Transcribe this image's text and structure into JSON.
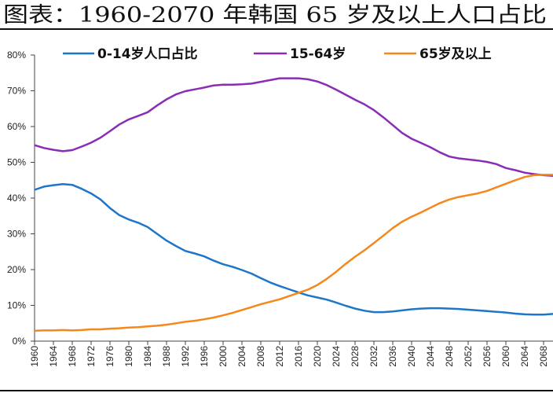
{
  "chart_data": {
    "type": "line",
    "title": "图表：1960-2070 年韩国 65 岁及以上人口占比",
    "xlim": [
      1960,
      2070
    ],
    "ylim": [
      0,
      80
    ],
    "x_ticks": [
      1960,
      1964,
      1968,
      1972,
      1976,
      1980,
      1984,
      1988,
      1992,
      1996,
      2000,
      2004,
      2008,
      2012,
      2016,
      2020,
      2024,
      2028,
      2032,
      2036,
      2040,
      2044,
      2048,
      2052,
      2056,
      2060,
      2064,
      2068
    ],
    "y_ticks": [
      0,
      10,
      20,
      30,
      40,
      50,
      60,
      70,
      80
    ],
    "y_tick_labels": [
      "0%",
      "10%",
      "20%",
      "30%",
      "40%",
      "50%",
      "60%",
      "70%",
      "80%"
    ],
    "legend": "top",
    "grid": false,
    "x": [
      1960,
      1962,
      1964,
      1966,
      1968,
      1970,
      1972,
      1974,
      1976,
      1978,
      1980,
      1982,
      1984,
      1986,
      1988,
      1990,
      1992,
      1994,
      1996,
      1998,
      2000,
      2002,
      2004,
      2006,
      2008,
      2010,
      2012,
      2014,
      2016,
      2018,
      2020,
      2022,
      2024,
      2026,
      2028,
      2030,
      2032,
      2034,
      2036,
      2038,
      2040,
      2042,
      2044,
      2046,
      2048,
      2050,
      2052,
      2054,
      2056,
      2058,
      2060,
      2062,
      2064,
      2066,
      2068,
      2070
    ],
    "series": [
      {
        "name": "0-14岁人口占比",
        "color": "#1d76c8",
        "values": [
          42.3,
          43.2,
          43.6,
          43.9,
          43.7,
          42.6,
          41.3,
          39.6,
          37.2,
          35.2,
          34.0,
          33.1,
          31.9,
          30.0,
          28.1,
          26.6,
          25.2,
          24.5,
          23.7,
          22.5,
          21.5,
          20.8,
          19.9,
          18.9,
          17.6,
          16.4,
          15.4,
          14.5,
          13.6,
          12.8,
          12.2,
          11.6,
          10.8,
          9.9,
          9.1,
          8.5,
          8.1,
          8.1,
          8.3,
          8.6,
          8.9,
          9.1,
          9.2,
          9.2,
          9.1,
          9.0,
          8.8,
          8.6,
          8.4,
          8.2,
          8.0,
          7.7,
          7.5,
          7.4,
          7.4,
          7.6
        ]
      },
      {
        "name": "15-64岁",
        "color": "#8a2db6",
        "values": [
          54.8,
          54.0,
          53.5,
          53.1,
          53.4,
          54.4,
          55.5,
          56.9,
          58.7,
          60.6,
          62.0,
          63.0,
          64.0,
          65.9,
          67.6,
          69.0,
          69.9,
          70.4,
          70.9,
          71.5,
          71.7,
          71.7,
          71.8,
          72.0,
          72.5,
          73.0,
          73.5,
          73.5,
          73.5,
          73.2,
          72.6,
          71.6,
          70.3,
          68.9,
          67.5,
          66.2,
          64.6,
          62.6,
          60.4,
          58.2,
          56.6,
          55.4,
          54.2,
          52.8,
          51.6,
          51.1,
          50.8,
          50.5,
          50.1,
          49.5,
          48.4,
          47.8,
          47.1,
          46.7,
          46.4,
          46.2
        ]
      },
      {
        "name": "65岁及以上",
        "color": "#f5881b",
        "values": [
          2.9,
          3.0,
          3.0,
          3.1,
          3.0,
          3.1,
          3.3,
          3.3,
          3.5,
          3.6,
          3.8,
          3.9,
          4.1,
          4.3,
          4.6,
          5.0,
          5.4,
          5.7,
          6.1,
          6.6,
          7.2,
          7.9,
          8.7,
          9.5,
          10.3,
          11.0,
          11.7,
          12.6,
          13.5,
          14.4,
          15.7,
          17.4,
          19.4,
          21.6,
          23.6,
          25.4,
          27.4,
          29.5,
          31.6,
          33.4,
          34.8,
          36.0,
          37.3,
          38.6,
          39.6,
          40.3,
          40.8,
          41.3,
          42.0,
          43.0,
          44.0,
          45.0,
          45.9,
          46.4,
          46.5,
          46.5
        ]
      }
    ]
  }
}
